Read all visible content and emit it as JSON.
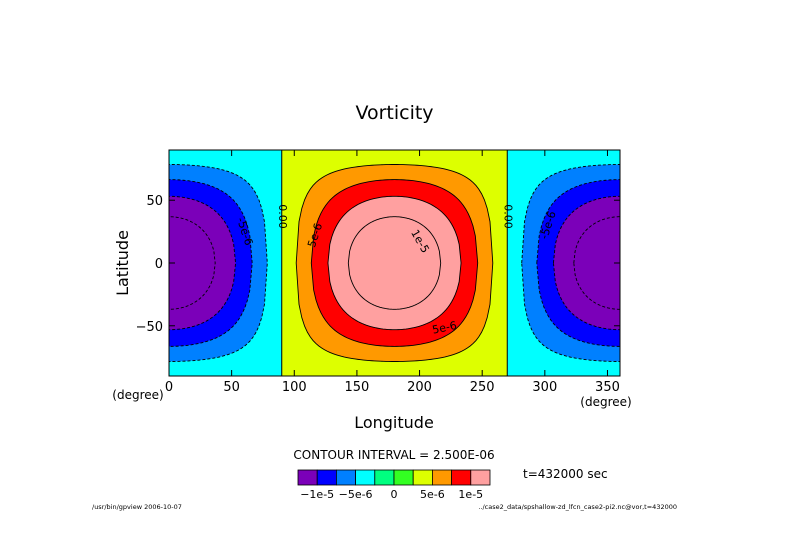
{
  "chart_data": {
    "type": "heatmap",
    "title": "Vorticity",
    "xlabel": "Longitude",
    "ylabel": "Latitude",
    "x_unit": "(degree)",
    "y_unit": "(degree)",
    "xlim": [
      0,
      360
    ],
    "ylim": [
      -90,
      90
    ],
    "x_ticks": [
      0,
      50,
      100,
      150,
      200,
      250,
      300,
      350
    ],
    "y_ticks": [
      50,
      0,
      -50
    ],
    "field_model": "vorticity(lon, lat) = -1.25e-5 * cos(lon) * cos(lat)",
    "contour_levels": [
      -1e-05,
      -7.5e-06,
      -5e-06,
      -2.5e-06,
      0,
      2.5e-06,
      5e-06,
      7.5e-06,
      1e-05
    ],
    "contour_interval_text": "CONTOUR INTERVAL = 2.500E-06",
    "contour_labels": [
      {
        "text": "5e-6",
        "lon": 117,
        "lat": 22,
        "angle": -72
      },
      {
        "text": "1e-5",
        "lon": 200,
        "lat": 17,
        "angle": 60
      },
      {
        "text": "5e-6",
        "lon": 220,
        "lat": -52,
        "angle": -12
      },
      {
        "text": "0.00",
        "lon": 90,
        "lat": 37,
        "angle": 90
      },
      {
        "text": "0.00",
        "lon": 270,
        "lat": 37,
        "angle": 90
      },
      {
        "text": "-5e-6",
        "lon": 60,
        "lat": 25,
        "angle": 72
      },
      {
        "text": "-5e-6",
        "lon": 303,
        "lat": 30,
        "angle": -72
      }
    ],
    "colorbar": {
      "colors": [
        "#7b00b9",
        "#0000ff",
        "#0080ff",
        "#00ffff",
        "#00ff80",
        "#33ff22",
        "#ddff00",
        "#ff9900",
        "#ff0000",
        "#ffa0a0"
      ],
      "labels": [
        "-1e-5",
        "-5e-6",
        "0",
        "5e-6",
        "1e-5"
      ]
    },
    "time_text": "t=432000 sec",
    "footer_left": "/usr/bin/gpview  2006-10-07",
    "footer_right": "../case2_data/spshallow-zd_lfcn_case2-pi2.nc@vor,t=432000"
  }
}
